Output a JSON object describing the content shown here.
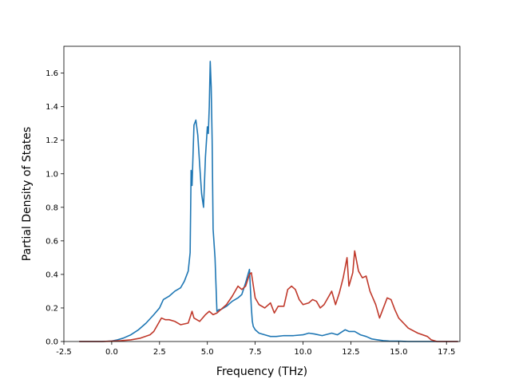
{
  "chart_data": {
    "type": "line",
    "title": "",
    "xlabel": "Frequency (THz)",
    "ylabel": "Partial Density of States",
    "xlim": [
      -2.5,
      18.2
    ],
    "ylim": [
      0.0,
      1.76
    ],
    "xticks": [
      "-2.5",
      "0.0",
      "2.5",
      "5.0",
      "7.5",
      "10.0",
      "12.5",
      "15.0",
      "17.5"
    ],
    "yticks": [
      "0.0",
      "0.2",
      "0.4",
      "0.6",
      "0.8",
      "1.0",
      "1.2",
      "1.4",
      "1.6"
    ],
    "grid": false,
    "legend": "none",
    "series": [
      {
        "color": "#1f77b4",
        "x": [
          -1.7,
          -0.5,
          0.0,
          0.3,
          0.6,
          1.0,
          1.4,
          1.8,
          2.2,
          2.5,
          2.7,
          3.0,
          3.3,
          3.6,
          3.8,
          4.0,
          4.1,
          4.15,
          4.2,
          4.3,
          4.4,
          4.5,
          4.6,
          4.7,
          4.8,
          4.9,
          5.0,
          5.05,
          5.1,
          5.15,
          5.2,
          5.25,
          5.3,
          5.4,
          5.5,
          5.6,
          5.65,
          5.7,
          6.0,
          6.3,
          6.6,
          6.8,
          7.0,
          7.2,
          7.3,
          7.35,
          7.4,
          7.5,
          7.7,
          8.0,
          8.3,
          8.6,
          9.0,
          9.5,
          10.0,
          10.3,
          10.6,
          11.0,
          11.5,
          11.8,
          12.0,
          12.2,
          12.4,
          12.7,
          13.0,
          13.3,
          13.6,
          13.9,
          14.2,
          14.5,
          15.0,
          15.5,
          16.0,
          16.5,
          17.0,
          17.5,
          18.1
        ],
        "y": [
          0.0,
          0.0,
          0.003,
          0.01,
          0.02,
          0.04,
          0.07,
          0.11,
          0.16,
          0.2,
          0.25,
          0.27,
          0.3,
          0.32,
          0.36,
          0.42,
          0.53,
          1.02,
          0.93,
          1.29,
          1.32,
          1.23,
          1.05,
          0.88,
          0.8,
          1.1,
          1.28,
          1.24,
          1.4,
          1.67,
          1.52,
          1.2,
          0.67,
          0.5,
          0.18,
          0.19,
          0.19,
          0.19,
          0.21,
          0.24,
          0.26,
          0.28,
          0.35,
          0.43,
          0.2,
          0.12,
          0.09,
          0.07,
          0.05,
          0.04,
          0.03,
          0.03,
          0.035,
          0.035,
          0.04,
          0.05,
          0.045,
          0.035,
          0.05,
          0.04,
          0.055,
          0.07,
          0.06,
          0.06,
          0.04,
          0.03,
          0.015,
          0.01,
          0.005,
          0.003,
          0.002,
          0.0,
          0.0,
          0.0,
          0.0,
          0.0,
          0.0
        ]
      },
      {
        "color": "#c0392b",
        "x": [
          -1.7,
          -0.5,
          0.0,
          0.5,
          1.0,
          1.5,
          2.0,
          2.2,
          2.4,
          2.6,
          2.8,
          3.0,
          3.3,
          3.6,
          4.0,
          4.2,
          4.3,
          4.6,
          4.9,
          5.1,
          5.3,
          5.5,
          5.7,
          6.0,
          6.3,
          6.6,
          6.8,
          7.0,
          7.2,
          7.3,
          7.5,
          7.7,
          8.0,
          8.3,
          8.5,
          8.7,
          9.0,
          9.2,
          9.4,
          9.6,
          9.8,
          10.0,
          10.3,
          10.5,
          10.7,
          10.9,
          11.1,
          11.3,
          11.5,
          11.7,
          11.9,
          12.1,
          12.3,
          12.4,
          12.6,
          12.7,
          12.9,
          13.1,
          13.3,
          13.5,
          13.8,
          14.0,
          14.2,
          14.4,
          14.6,
          14.8,
          15.0,
          15.5,
          16.0,
          16.5,
          16.7,
          17.0,
          18.1
        ],
        "y": [
          0.0,
          0.0,
          0.002,
          0.005,
          0.01,
          0.02,
          0.04,
          0.06,
          0.1,
          0.14,
          0.13,
          0.13,
          0.12,
          0.1,
          0.11,
          0.18,
          0.14,
          0.12,
          0.16,
          0.18,
          0.16,
          0.17,
          0.19,
          0.22,
          0.27,
          0.33,
          0.31,
          0.33,
          0.4,
          0.41,
          0.26,
          0.22,
          0.2,
          0.23,
          0.17,
          0.21,
          0.21,
          0.31,
          0.33,
          0.31,
          0.25,
          0.22,
          0.23,
          0.25,
          0.24,
          0.2,
          0.22,
          0.26,
          0.3,
          0.22,
          0.29,
          0.38,
          0.5,
          0.33,
          0.41,
          0.54,
          0.42,
          0.38,
          0.39,
          0.3,
          0.22,
          0.14,
          0.2,
          0.26,
          0.25,
          0.19,
          0.14,
          0.08,
          0.05,
          0.03,
          0.01,
          0.0,
          0.0
        ]
      }
    ]
  }
}
